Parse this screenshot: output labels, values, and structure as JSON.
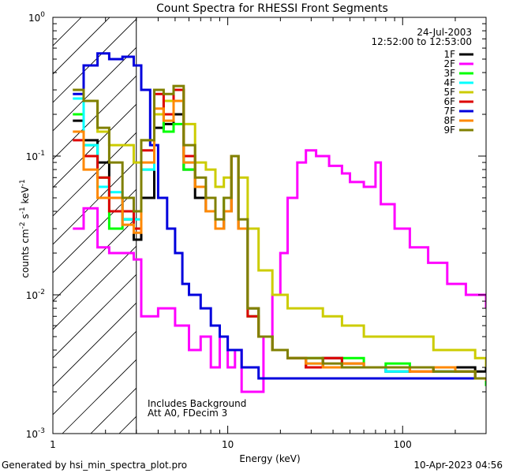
{
  "chart_data": {
    "type": "line",
    "title": "Count Spectra for RHESSI Front Segments",
    "xlabel": "Energy (keV)",
    "ylabel_parts": {
      "a": "counts cm",
      "b": "-2",
      "c": " s",
      "d": "-1",
      "e": " keV",
      "f": "-1"
    },
    "xscale": "log",
    "yscale": "log",
    "xlim": [
      1,
      300
    ],
    "ylim": [
      0.001,
      1
    ],
    "x_ticks": [
      {
        "value": 1,
        "label": "1"
      },
      {
        "value": 10,
        "label": "10"
      },
      {
        "value": 100,
        "label": "100"
      }
    ],
    "y_ticks": [
      {
        "value": 0.001,
        "base": "10",
        "exp": "-3"
      },
      {
        "value": 0.01,
        "base": "10",
        "exp": "-2"
      },
      {
        "value": 0.1,
        "base": "10",
        "exp": "-1"
      },
      {
        "value": 1,
        "base": "10",
        "exp": "0"
      }
    ],
    "date": "24-Jul-2003",
    "time_range": "12:52:00 to 12:53:00",
    "annotations": [
      "Includes Background",
      "Att A0, FDecim 3"
    ],
    "hatched_region_xmax": 3,
    "legend_position": "top-right",
    "series": [
      {
        "name": "1F",
        "color": "#000000",
        "values": [
          [
            1.3,
            0.18
          ],
          [
            1.5,
            0.13
          ],
          [
            1.8,
            0.09
          ],
          [
            2.1,
            0.05
          ],
          [
            2.5,
            0.035
          ],
          [
            2.9,
            0.025
          ],
          [
            3.2,
            0.05
          ],
          [
            3.8,
            0.16
          ],
          [
            4.3,
            0.17
          ],
          [
            4.9,
            0.2
          ],
          [
            5.6,
            0.08
          ],
          [
            6.5,
            0.05
          ],
          [
            7.5,
            0.04
          ],
          [
            8.5,
            0.03
          ],
          [
            9.5,
            0.04
          ],
          [
            10.5,
            0.1
          ],
          [
            11.5,
            0.03
          ],
          [
            13,
            0.008
          ],
          [
            15,
            0.005
          ],
          [
            18,
            0.004
          ],
          [
            22,
            0.0035
          ],
          [
            28,
            0.003
          ],
          [
            35,
            0.0035
          ],
          [
            45,
            0.003
          ],
          [
            60,
            0.003
          ],
          [
            80,
            0.0028
          ],
          [
            110,
            0.003
          ],
          [
            150,
            0.0028
          ],
          [
            200,
            0.003
          ],
          [
            260,
            0.0028
          ],
          [
            300,
            0.003
          ]
        ]
      },
      {
        "name": "2F",
        "color": "#ff00ff",
        "values": [
          [
            1.3,
            0.03
          ],
          [
            1.5,
            0.042
          ],
          [
            1.8,
            0.022
          ],
          [
            2.1,
            0.02
          ],
          [
            2.5,
            0.02
          ],
          [
            2.9,
            0.018
          ],
          [
            3.2,
            0.007
          ],
          [
            4,
            0.008
          ],
          [
            5,
            0.006
          ],
          [
            6,
            0.004
          ],
          [
            7,
            0.005
          ],
          [
            8,
            0.003
          ],
          [
            9,
            0.005
          ],
          [
            10,
            0.003
          ],
          [
            11,
            0.004
          ],
          [
            12,
            0.002
          ],
          [
            14,
            0.002
          ],
          [
            16,
            0.005
          ],
          [
            18,
            0.01
          ],
          [
            20,
            0.02
          ],
          [
            22,
            0.05
          ],
          [
            25,
            0.09
          ],
          [
            28,
            0.11
          ],
          [
            32,
            0.1
          ],
          [
            38,
            0.085
          ],
          [
            45,
            0.075
          ],
          [
            50,
            0.065
          ],
          [
            60,
            0.06
          ],
          [
            70,
            0.09
          ],
          [
            75,
            0.045
          ],
          [
            90,
            0.03
          ],
          [
            110,
            0.022
          ],
          [
            140,
            0.017
          ],
          [
            180,
            0.012
          ],
          [
            230,
            0.01
          ],
          [
            300,
            0.008
          ]
        ]
      },
      {
        "name": "3F",
        "color": "#00ff00",
        "values": [
          [
            1.3,
            0.2
          ],
          [
            1.5,
            0.12
          ],
          [
            1.8,
            0.07
          ],
          [
            2.1,
            0.03
          ],
          [
            2.5,
            0.035
          ],
          [
            2.9,
            0.03
          ],
          [
            3.2,
            0.08
          ],
          [
            3.8,
            0.2
          ],
          [
            4.3,
            0.15
          ],
          [
            4.9,
            0.17
          ],
          [
            5.6,
            0.08
          ],
          [
            6.5,
            0.06
          ],
          [
            7.5,
            0.05
          ],
          [
            8.5,
            0.03
          ],
          [
            9.5,
            0.05
          ],
          [
            10.5,
            0.1
          ],
          [
            11.5,
            0.03
          ],
          [
            13,
            0.007
          ],
          [
            15,
            0.005
          ],
          [
            18,
            0.004
          ],
          [
            22,
            0.0035
          ],
          [
            28,
            0.0035
          ],
          [
            35,
            0.003
          ],
          [
            45,
            0.0035
          ],
          [
            60,
            0.003
          ],
          [
            80,
            0.0032
          ],
          [
            110,
            0.003
          ],
          [
            150,
            0.003
          ],
          [
            200,
            0.0028
          ],
          [
            260,
            0.0025
          ],
          [
            300,
            0.0022
          ]
        ]
      },
      {
        "name": "4F",
        "color": "#00ffff",
        "values": [
          [
            1.3,
            0.26
          ],
          [
            1.5,
            0.12
          ],
          [
            1.8,
            0.06
          ],
          [
            2.1,
            0.055
          ],
          [
            2.5,
            0.035
          ],
          [
            2.9,
            0.035
          ],
          [
            3.2,
            0.08
          ],
          [
            3.8,
            0.2
          ],
          [
            4.3,
            0.2
          ],
          [
            4.9,
            0.25
          ],
          [
            5.6,
            0.09
          ],
          [
            6.5,
            0.06
          ],
          [
            7.5,
            0.04
          ],
          [
            8.5,
            0.03
          ],
          [
            9.5,
            0.04
          ],
          [
            10.5,
            0.1
          ],
          [
            11.5,
            0.03
          ],
          [
            13,
            0.008
          ],
          [
            15,
            0.005
          ],
          [
            18,
            0.004
          ],
          [
            22,
            0.0035
          ],
          [
            28,
            0.0032
          ],
          [
            35,
            0.003
          ],
          [
            45,
            0.0032
          ],
          [
            60,
            0.003
          ],
          [
            80,
            0.0028
          ],
          [
            110,
            0.003
          ],
          [
            150,
            0.0028
          ],
          [
            200,
            0.0028
          ],
          [
            260,
            0.0025
          ],
          [
            300,
            0.0025
          ]
        ]
      },
      {
        "name": "5F",
        "color": "#cccc00",
        "values": [
          [
            1.3,
            0.3
          ],
          [
            1.5,
            0.25
          ],
          [
            1.8,
            0.15
          ],
          [
            2.1,
            0.12
          ],
          [
            2.5,
            0.12
          ],
          [
            2.9,
            0.09
          ],
          [
            3.2,
            0.13
          ],
          [
            3.8,
            0.2
          ],
          [
            4.3,
            0.25
          ],
          [
            4.9,
            0.3
          ],
          [
            5.6,
            0.17
          ],
          [
            6.5,
            0.09
          ],
          [
            7.5,
            0.08
          ],
          [
            8.5,
            0.06
          ],
          [
            9.5,
            0.07
          ],
          [
            10.5,
            0.1
          ],
          [
            11.5,
            0.07
          ],
          [
            13,
            0.03
          ],
          [
            15,
            0.015
          ],
          [
            18,
            0.01
          ],
          [
            22,
            0.008
          ],
          [
            28,
            0.008
          ],
          [
            35,
            0.007
          ],
          [
            45,
            0.006
          ],
          [
            60,
            0.005
          ],
          [
            80,
            0.005
          ],
          [
            110,
            0.005
          ],
          [
            150,
            0.004
          ],
          [
            200,
            0.004
          ],
          [
            260,
            0.0035
          ],
          [
            300,
            0.003
          ]
        ]
      },
      {
        "name": "6F",
        "color": "#dd0000",
        "values": [
          [
            1.3,
            0.13
          ],
          [
            1.5,
            0.1
          ],
          [
            1.8,
            0.07
          ],
          [
            2.1,
            0.04
          ],
          [
            2.5,
            0.04
          ],
          [
            2.9,
            0.03
          ],
          [
            3.2,
            0.11
          ],
          [
            3.8,
            0.28
          ],
          [
            4.3,
            0.2
          ],
          [
            4.9,
            0.3
          ],
          [
            5.6,
            0.1
          ],
          [
            6.5,
            0.06
          ],
          [
            7.5,
            0.04
          ],
          [
            8.5,
            0.03
          ],
          [
            9.5,
            0.04
          ],
          [
            10.5,
            0.1
          ],
          [
            11.5,
            0.03
          ],
          [
            13,
            0.007
          ],
          [
            15,
            0.005
          ],
          [
            18,
            0.004
          ],
          [
            22,
            0.0035
          ],
          [
            28,
            0.003
          ],
          [
            35,
            0.0035
          ],
          [
            45,
            0.0032
          ],
          [
            60,
            0.003
          ],
          [
            80,
            0.003
          ],
          [
            110,
            0.0028
          ],
          [
            150,
            0.003
          ],
          [
            200,
            0.0028
          ],
          [
            260,
            0.0025
          ],
          [
            300,
            0.0025
          ]
        ]
      },
      {
        "name": "7F",
        "color": "#0000dd",
        "values": [
          [
            1.3,
            0.28
          ],
          [
            1.5,
            0.45
          ],
          [
            1.8,
            0.55
          ],
          [
            2.1,
            0.5
          ],
          [
            2.5,
            0.52
          ],
          [
            2.9,
            0.45
          ],
          [
            3.2,
            0.3
          ],
          [
            3.6,
            0.12
          ],
          [
            4,
            0.05
          ],
          [
            4.5,
            0.03
          ],
          [
            5,
            0.02
          ],
          [
            5.5,
            0.012
          ],
          [
            6,
            0.01
          ],
          [
            7,
            0.008
          ],
          [
            8,
            0.006
          ],
          [
            9,
            0.005
          ],
          [
            10,
            0.004
          ],
          [
            12,
            0.003
          ],
          [
            15,
            0.0025
          ],
          [
            20,
            0.0025
          ],
          [
            30,
            0.0025
          ],
          [
            50,
            0.0025
          ],
          [
            80,
            0.0025
          ],
          [
            120,
            0.0025
          ],
          [
            180,
            0.0025
          ],
          [
            250,
            0.0025
          ],
          [
            300,
            0.0025
          ]
        ]
      },
      {
        "name": "8F",
        "color": "#ff8800",
        "values": [
          [
            1.3,
            0.15
          ],
          [
            1.5,
            0.08
          ],
          [
            1.8,
            0.05
          ],
          [
            2.1,
            0.05
          ],
          [
            2.5,
            0.032
          ],
          [
            2.9,
            0.028
          ],
          [
            3.2,
            0.09
          ],
          [
            3.8,
            0.22
          ],
          [
            4.3,
            0.18
          ],
          [
            4.9,
            0.25
          ],
          [
            5.6,
            0.09
          ],
          [
            6.5,
            0.06
          ],
          [
            7.5,
            0.04
          ],
          [
            8.5,
            0.03
          ],
          [
            9.5,
            0.04
          ],
          [
            10.5,
            0.1
          ],
          [
            11.5,
            0.03
          ],
          [
            13,
            0.008
          ],
          [
            15,
            0.005
          ],
          [
            18,
            0.004
          ],
          [
            22,
            0.0035
          ],
          [
            28,
            0.0032
          ],
          [
            35,
            0.003
          ],
          [
            45,
            0.0032
          ],
          [
            60,
            0.003
          ],
          [
            80,
            0.003
          ],
          [
            110,
            0.0028
          ],
          [
            150,
            0.003
          ],
          [
            200,
            0.0028
          ],
          [
            260,
            0.0025
          ],
          [
            300,
            0.0024
          ]
        ]
      },
      {
        "name": "9F",
        "color": "#808000",
        "values": [
          [
            1.3,
            0.3
          ],
          [
            1.5,
            0.25
          ],
          [
            1.8,
            0.16
          ],
          [
            2.1,
            0.09
          ],
          [
            2.5,
            0.05
          ],
          [
            2.9,
            0.04
          ],
          [
            3.2,
            0.13
          ],
          [
            3.8,
            0.3
          ],
          [
            4.3,
            0.28
          ],
          [
            4.9,
            0.32
          ],
          [
            5.6,
            0.12
          ],
          [
            6.5,
            0.07
          ],
          [
            7.5,
            0.05
          ],
          [
            8.5,
            0.035
          ],
          [
            9.5,
            0.05
          ],
          [
            10.5,
            0.1
          ],
          [
            11.5,
            0.035
          ],
          [
            13,
            0.008
          ],
          [
            15,
            0.005
          ],
          [
            18,
            0.004
          ],
          [
            22,
            0.0035
          ],
          [
            28,
            0.0035
          ],
          [
            35,
            0.0032
          ],
          [
            45,
            0.003
          ],
          [
            60,
            0.003
          ],
          [
            80,
            0.003
          ],
          [
            110,
            0.003
          ],
          [
            150,
            0.0028
          ],
          [
            200,
            0.0028
          ],
          [
            260,
            0.0025
          ],
          [
            300,
            0.0025
          ]
        ]
      }
    ]
  },
  "footer": {
    "generated_by": "Generated by hsi_min_spectra_plot.pro",
    "timestamp": "10-Apr-2023 04:56"
  }
}
